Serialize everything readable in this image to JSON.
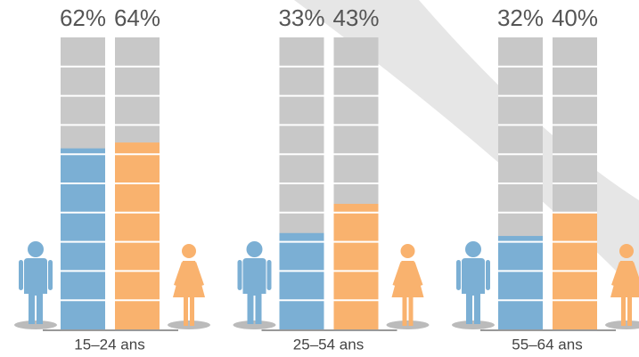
{
  "chart_data": {
    "type": "bar",
    "categories": [
      "15–24 ans",
      "25–54 ans",
      "55–64 ans"
    ],
    "series": [
      {
        "color": "#7bafd4",
        "values": [
          62,
          33,
          32
        ],
        "value_labels": [
          "62%",
          "33%",
          "32%"
        ]
      },
      {
        "color": "#f9b26e",
        "values": [
          64,
          43,
          40
        ],
        "value_labels": [
          "64%",
          "43%",
          "40%"
        ]
      }
    ],
    "ylim": [
      0,
      100
    ]
  }
}
